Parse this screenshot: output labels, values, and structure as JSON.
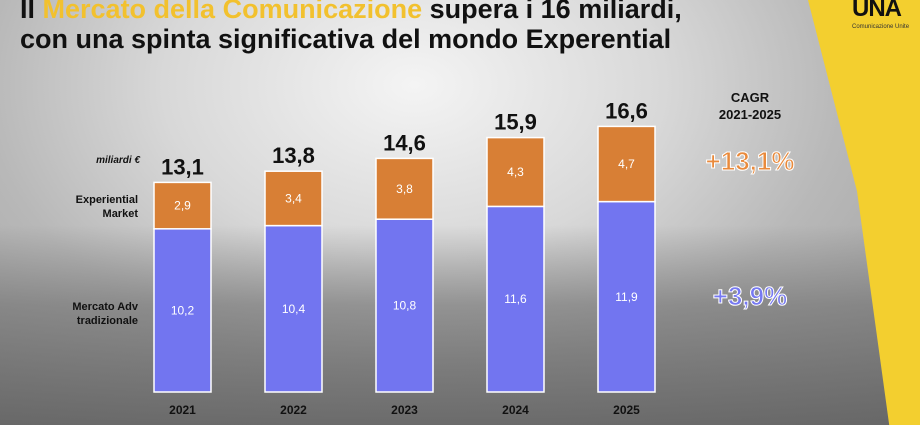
{
  "title": {
    "line1_pre": "Il ",
    "line1_highlight": "Mercato della Comunicazione",
    "line1_post": " supera i 16 miliardi,",
    "line2": "con una spinta significativa del mondo Experential"
  },
  "logo": {
    "mark": "UNA",
    "sub": "Comunicazione Unite"
  },
  "chart_data": {
    "type": "bar",
    "stacked": true,
    "unit_label": "miliardi €",
    "categories": [
      "2021",
      "2022",
      "2023",
      "2024",
      "2025"
    ],
    "series": [
      {
        "name": "Mercato Adv tradizionale",
        "values": [
          10.2,
          10.4,
          10.8,
          11.6,
          11.9
        ],
        "labels": [
          "10,2",
          "10,4",
          "10,8",
          "11,6",
          "11,9"
        ],
        "color": "#7275f0"
      },
      {
        "name": "Experiential Market",
        "values": [
          2.9,
          3.4,
          3.8,
          4.3,
          4.7
        ],
        "labels": [
          "2,9",
          "3,4",
          "3,8",
          "4,3",
          "4,7"
        ],
        "color": "#d87f35"
      }
    ],
    "totals": [
      "13,1",
      "13,8",
      "14,6",
      "15,9",
      "16,6"
    ],
    "totals_values": [
      13.1,
      13.8,
      14.6,
      15.9,
      16.6
    ],
    "series_labels": {
      "experiential": [
        "Experiential",
        "Market"
      ],
      "tradizionale": [
        "Mercato Adv",
        "tradizionale"
      ]
    },
    "cagr": {
      "title": [
        "CAGR",
        "2021-2025"
      ],
      "experiential": "+13,1%",
      "tradizionale": "+3,9%",
      "experiential_color": "#e98a3c",
      "tradizionale_color": "#7679f2"
    },
    "ylim": [
      0,
      16.6
    ]
  }
}
